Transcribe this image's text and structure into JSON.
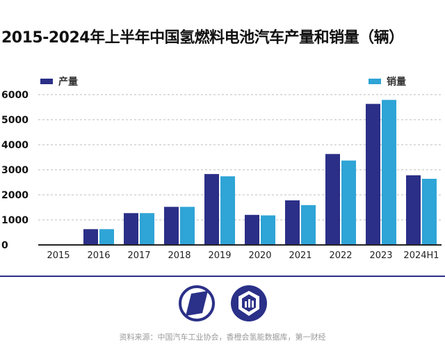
{
  "chart_data": {
    "type": "bar",
    "title": "2015-2024年上半年中国氢燃料电池汽车产量和销量（辆）",
    "categories": [
      "2015",
      "2016",
      "2017",
      "2018",
      "2019",
      "2020",
      "2021",
      "2022",
      "2023",
      "2024H1"
    ],
    "series": [
      {
        "name": "产量",
        "color": "#2b2f87",
        "values": [
          10,
          630,
          1270,
          1520,
          2830,
          1200,
          1780,
          3630,
          5630,
          2780
        ]
      },
      {
        "name": "销量",
        "color": "#2fa4d6",
        "values": [
          10,
          630,
          1270,
          1520,
          2740,
          1180,
          1590,
          3370,
          5790,
          2640
        ]
      }
    ],
    "yticks": [
      0,
      1000,
      2000,
      3000,
      4000,
      5000,
      6000
    ],
    "ylim": [
      0,
      6000
    ],
    "grid": true,
    "legend": "top"
  },
  "footer": {
    "source": "资料来源：中国汽车工业协会，香橙会氢能数据库，第一财经"
  }
}
